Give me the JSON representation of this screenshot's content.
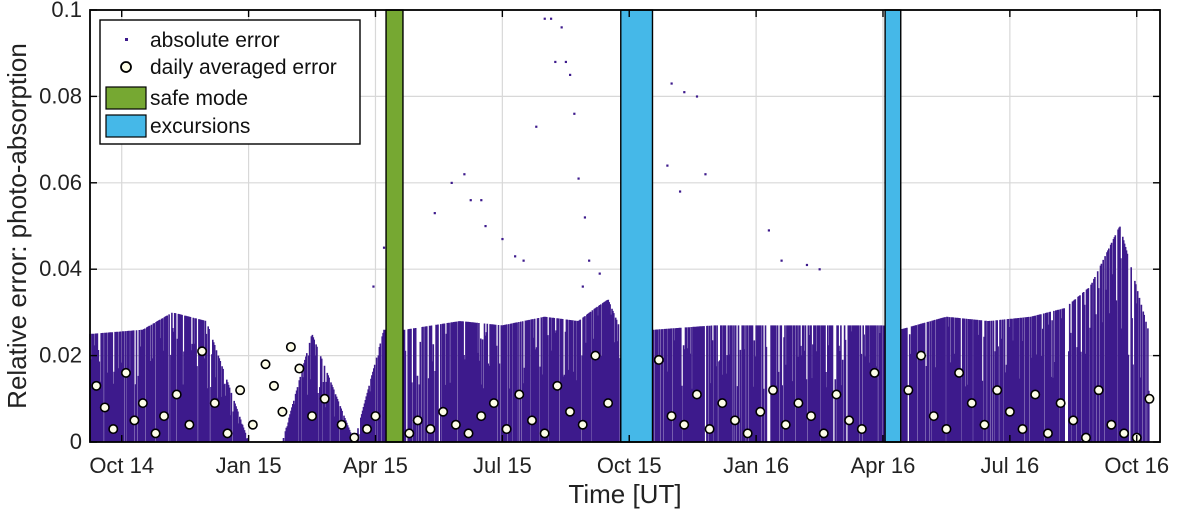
{
  "chart_data": {
    "type": "scatter",
    "xlabel": "Time [UT]",
    "ylabel": "Relative error: photo-absorption",
    "x_unit": "months since Oct 2014 (Oct 14 = 0)",
    "xlim": [
      -0.75,
      24.55
    ],
    "ylim": [
      0,
      0.1
    ],
    "grid": true,
    "x_ticks": [
      {
        "value": 0,
        "label": "Oct 14"
      },
      {
        "value": 3,
        "label": "Jan 15"
      },
      {
        "value": 6,
        "label": "Apr 15"
      },
      {
        "value": 9,
        "label": "Jul 15"
      },
      {
        "value": 12,
        "label": "Oct 15"
      },
      {
        "value": 15,
        "label": "Jan 16"
      },
      {
        "value": 18,
        "label": "Apr 16"
      },
      {
        "value": 21,
        "label": "Jul 16"
      },
      {
        "value": 24,
        "label": "Oct 16"
      }
    ],
    "y_ticks": [
      {
        "value": 0,
        "label": "0"
      },
      {
        "value": 0.02,
        "label": "0.02"
      },
      {
        "value": 0.04,
        "label": "0.04"
      },
      {
        "value": 0.06,
        "label": "0.06"
      },
      {
        "value": 0.08,
        "label": "0.08"
      },
      {
        "value": 0.1,
        "label": "0.1"
      }
    ],
    "legend": {
      "placement": "top-left",
      "entries": [
        {
          "label": "absolute error",
          "kind": "dot"
        },
        {
          "label": "daily averaged error",
          "kind": "circle"
        },
        {
          "label": "safe mode",
          "kind": "patch",
          "color": "#76a832"
        },
        {
          "label": "excursions",
          "kind": "patch",
          "color": "#45b8e8"
        }
      ]
    },
    "colors": {
      "absolute_error": "#3d1a8c",
      "daily_avg_fill": "#fdfde8",
      "daily_avg_edge": "#000000",
      "safe_mode": "#76a832",
      "excursions": "#45b8e8",
      "grid": "#d8d8d8"
    },
    "shaded_regions": [
      {
        "label": "safe mode",
        "x0": 6.25,
        "x1": 6.65
      },
      {
        "label": "excursions",
        "x0": 11.8,
        "x1": 12.55
      },
      {
        "label": "excursions",
        "x0": 18.05,
        "x1": 18.42
      }
    ],
    "absolute_error_envelope": {
      "x": [
        -0.75,
        0.5,
        1.2,
        2.0,
        3.0,
        3.8,
        4.5,
        5.5,
        6.2,
        6.7,
        8.0,
        9.0,
        10.0,
        10.8,
        11.2,
        11.5,
        11.8,
        12.6,
        14.0,
        15.0,
        16.0,
        17.0,
        18.0,
        18.4,
        19.5,
        20.5,
        21.5,
        22.3,
        22.9,
        23.3,
        23.6,
        24.3
      ],
      "y_max": [
        0.025,
        0.026,
        0.03,
        0.028,
        0.0,
        0.0,
        0.025,
        0.0,
        0.026,
        0.026,
        0.028,
        0.027,
        0.029,
        0.028,
        0.031,
        0.033,
        0.026,
        0.026,
        0.027,
        0.027,
        0.027,
        0.027,
        0.027,
        0.026,
        0.029,
        0.028,
        0.029,
        0.031,
        0.036,
        0.044,
        0.05,
        0.025
      ]
    },
    "absolute_error_outliers": {
      "x": [
        6.2,
        5.95,
        8.1,
        8.25,
        8.5,
        8.6,
        9.0,
        9.3,
        9.5,
        10.0,
        10.15,
        10.25,
        10.4,
        10.5,
        10.6,
        10.7,
        10.8,
        10.95,
        11.05,
        13.0,
        13.3,
        13.6,
        13.8,
        15.3,
        15.6,
        16.2,
        16.5,
        7.8,
        7.4,
        9.8,
        12.9,
        13.2,
        11.3,
        10.9
      ],
      "y": [
        0.045,
        0.036,
        0.062,
        0.056,
        0.056,
        0.05,
        0.047,
        0.043,
        0.042,
        0.098,
        0.098,
        0.088,
        0.096,
        0.088,
        0.085,
        0.076,
        0.061,
        0.052,
        0.042,
        0.083,
        0.081,
        0.08,
        0.062,
        0.049,
        0.042,
        0.041,
        0.04,
        0.06,
        0.053,
        0.073,
        0.064,
        0.058,
        0.039,
        0.036
      ]
    },
    "daily_averaged_error_points": {
      "x": [
        -0.6,
        -0.4,
        -0.2,
        0.1,
        0.3,
        0.5,
        0.8,
        1.0,
        1.3,
        1.6,
        1.9,
        2.2,
        2.5,
        2.8,
        3.1,
        3.4,
        3.6,
        3.8,
        4.0,
        4.2,
        4.5,
        4.8,
        5.2,
        5.5,
        5.8,
        6.0,
        6.8,
        7.0,
        7.3,
        7.6,
        7.9,
        8.2,
        8.5,
        8.8,
        9.1,
        9.4,
        9.7,
        10.0,
        10.3,
        10.6,
        10.9,
        11.2,
        11.5,
        12.7,
        13.0,
        13.3,
        13.6,
        13.9,
        14.2,
        14.5,
        14.8,
        15.1,
        15.4,
        15.7,
        16.0,
        16.3,
        16.6,
        16.9,
        17.2,
        17.5,
        17.8,
        18.6,
        18.9,
        19.2,
        19.5,
        19.8,
        20.1,
        20.4,
        20.7,
        21.0,
        21.3,
        21.6,
        21.9,
        22.2,
        22.5,
        22.8,
        23.1,
        23.4,
        23.7,
        24.0,
        24.3
      ],
      "y": [
        0.013,
        0.008,
        0.003,
        0.016,
        0.005,
        0.009,
        0.002,
        0.006,
        0.011,
        0.004,
        0.021,
        0.009,
        0.002,
        0.012,
        0.004,
        0.018,
        0.013,
        0.007,
        0.022,
        0.017,
        0.006,
        0.01,
        0.004,
        0.001,
        0.003,
        0.006,
        0.002,
        0.005,
        0.003,
        0.007,
        0.004,
        0.002,
        0.006,
        0.009,
        0.003,
        0.011,
        0.005,
        0.002,
        0.013,
        0.007,
        0.004,
        0.02,
        0.009,
        0.019,
        0.006,
        0.004,
        0.011,
        0.003,
        0.009,
        0.005,
        0.002,
        0.007,
        0.012,
        0.004,
        0.009,
        0.006,
        0.002,
        0.011,
        0.005,
        0.003,
        0.016,
        0.012,
        0.02,
        0.006,
        0.003,
        0.016,
        0.009,
        0.004,
        0.012,
        0.007,
        0.003,
        0.011,
        0.002,
        0.009,
        0.005,
        0.001,
        0.012,
        0.004,
        0.002,
        0.001,
        0.01
      ]
    }
  }
}
